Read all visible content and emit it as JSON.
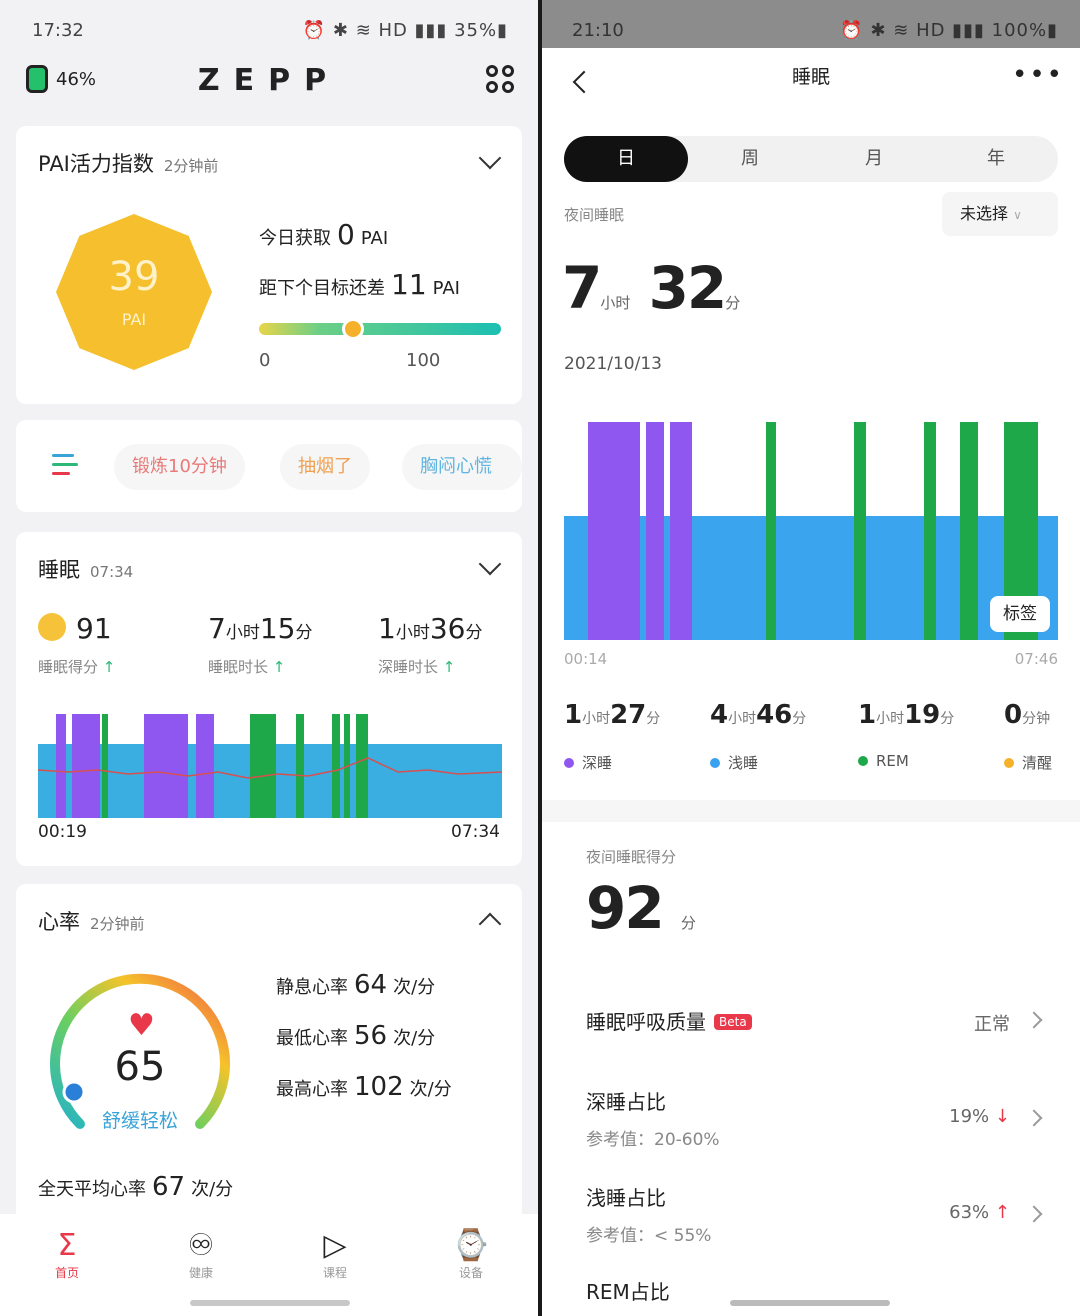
{
  "left": {
    "status": {
      "time": "17:32",
      "icons": "⏰ ✱ ≋ HD ▮▮▮ 35%▮"
    },
    "header": {
      "battery": "46%",
      "logo": "ZEPP"
    },
    "pai": {
      "title": "PAI活力指数",
      "updated": "2分钟前",
      "score": "39",
      "score_label": "PAI",
      "today_prefix": "今日获取",
      "today_value": "0",
      "today_unit": "PAI",
      "goal_prefix": "距下个目标还差",
      "goal_value": "11",
      "goal_unit": "PAI",
      "scale_min": "0",
      "scale_max": "100",
      "progress": 0.39
    },
    "tags": [
      "锻炼10分钟",
      "抽烟了",
      "胸闷心慌"
    ],
    "sleep": {
      "title": "睡眠",
      "time": "07:34",
      "score": "91",
      "score_label": "睡眠得分",
      "dur_h": "7",
      "dur_m": "15",
      "dur_label": "睡眠时长",
      "deep_h": "1",
      "deep_m": "36",
      "deep_label": "深睡时长",
      "unit_h": "小时",
      "unit_m": "分",
      "start": "00:19",
      "end": "07:34"
    },
    "heart": {
      "title": "心率",
      "updated": "2分钟前",
      "value": "65",
      "state": "舒缓轻松",
      "rest_label": "静息心率",
      "rest": "64",
      "min_label": "最低心率",
      "min": "56",
      "max_label": "最高心率",
      "max": "102",
      "unit": "次/分",
      "avg_label": "全天平均心率",
      "avg": "67"
    },
    "tabs": [
      {
        "icon": "Σ",
        "label": "首页",
        "color": "#e8384a"
      },
      {
        "icon": "♾",
        "label": "健康",
        "color": "#555"
      },
      {
        "icon": "▷",
        "label": "课程",
        "color": "#555"
      },
      {
        "icon": "⌚",
        "label": "设备",
        "color": "#555"
      }
    ]
  },
  "right": {
    "status": {
      "time": "21:10",
      "icons": "⏰ ✱ ≋ HD ▮▮▮ 100%▮"
    },
    "title": "睡眠",
    "more": "•••",
    "seg": [
      "日",
      "周",
      "月",
      "年"
    ],
    "night_label": "夜间睡眠",
    "select": "未选择",
    "total_h": "7",
    "total_m": "32",
    "unit_h": "小时",
    "unit_m": "分",
    "date": "2021/10/13",
    "chart_start": "00:14",
    "chart_end": "07:46",
    "tag_button": "标签",
    "stats": [
      {
        "h": "1",
        "m": "27",
        "name": "深睡",
        "color": "#8f57f0"
      },
      {
        "h": "4",
        "m": "46",
        "name": "浅睡",
        "color": "#3aa0f0"
      },
      {
        "h": "1",
        "m": "19",
        "name": "REM",
        "color": "#1ea84a"
      },
      {
        "h": "",
        "m": "0",
        "name": "清醒",
        "color": "#f5b12a",
        "unit": "分钟"
      }
    ],
    "score_label": "夜间睡眠得分",
    "score": "92",
    "score_unit": "分",
    "breath_label": "睡眠呼吸质量",
    "beta": "Beta",
    "breath_value": "正常",
    "deep_ratio_label": "深睡占比",
    "deep_ref": "参考值：20-60%",
    "deep_ratio": "19%",
    "light_ratio_label": "浅睡占比",
    "light_ref": "参考值：< 55%",
    "light_ratio": "63%",
    "rem_ratio_label": "REM占比"
  }
}
